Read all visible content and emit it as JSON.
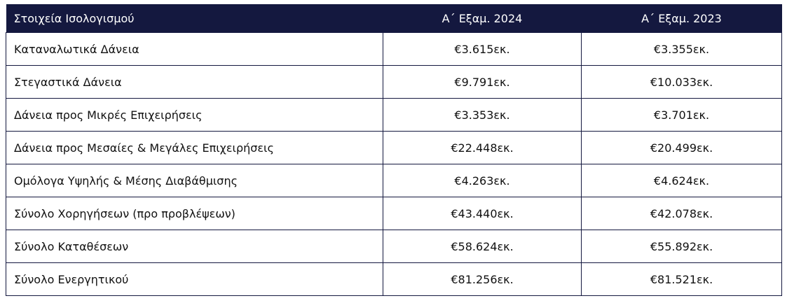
{
  "table": {
    "headers": [
      "Στοιχεία Ισολογισμού",
      "Α΄ Εξαμ. 2024",
      "Α΄ Εξαμ. 2023"
    ],
    "rows": [
      {
        "label": "Καταναλωτικά Δάνεια",
        "v2024": "€3.615εκ.",
        "v2023": "€3.355εκ."
      },
      {
        "label": "Στεγαστικά Δάνεια",
        "v2024": "€9.791εκ.",
        "v2023": "€10.033εκ."
      },
      {
        "label": "Δάνεια προς Μικρές Επιχειρήσεις",
        "v2024": "€3.353εκ.",
        "v2023": "€3.701εκ."
      },
      {
        "label": "Δάνεια προς Μεσαίες & Μεγάλες Επιχειρήσεις",
        "v2024": "€22.448εκ.",
        "v2023": "€20.499εκ."
      },
      {
        "label": "Ομόλογα Υψηλής & Μέσης Διαβάθμισης",
        "v2024": "€4.263εκ.",
        "v2023": "€4.624εκ."
      },
      {
        "label": "Σύνολο Χορηγήσεων (προ προβλέψεων)",
        "v2024": "€43.440εκ.",
        "v2023": "€42.078εκ."
      },
      {
        "label": "Σύνολο Καταθέσεων",
        "v2024": "€58.624εκ.",
        "v2023": "€55.892εκ."
      },
      {
        "label": "Σύνολο Ενεργητικού",
        "v2024": "€81.256εκ.",
        "v2023": "€81.521εκ."
      }
    ]
  },
  "colors": {
    "header_bg": "#14183f",
    "header_text": "#ffffff",
    "border": "#14183f"
  }
}
